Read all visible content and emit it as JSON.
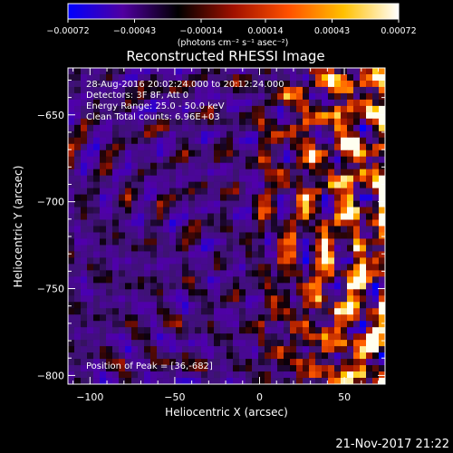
{
  "chart_data": {
    "type": "heatmap",
    "title": "Reconstructed RHESSI Image",
    "xlabel": "Heliocentric X (arcsec)",
    "ylabel": "Heliocentric Y (arcsec)",
    "xlim": [
      -113,
      74
    ],
    "ylim": [
      -805,
      -623
    ],
    "x_ticks": [
      -100,
      -50,
      0,
      50
    ],
    "y_ticks": [
      -650,
      -700,
      -750,
      -800
    ],
    "x_tick_labels": [
      "−100",
      "−50",
      "0",
      "50"
    ],
    "y_tick_labels": [
      "−650",
      "−700",
      "−750",
      "−800"
    ],
    "colorbar": {
      "range": [
        -0.00072,
        0.00072
      ],
      "ticks": [
        -0.00072,
        -0.00043,
        -0.00014,
        0.00014,
        0.00043,
        0.00072
      ],
      "tick_labels": [
        "−0.00072",
        "−0.00043",
        "−0.00014",
        "0.00014",
        "0.00043",
        "0.00072"
      ],
      "unit_label": "(photons cm⁻² s⁻¹ asec⁻²)",
      "colors": [
        "#0000ff",
        "#5000a0",
        "#000000",
        "#a01000",
        "#ff5000",
        "#ffc000",
        "#ffffff"
      ]
    },
    "annotations": [
      "28-Aug-2016 20:02:24.000 to 20:12:24.000",
      "Detectors: 3F 8F, Att 0",
      "Energy Range: 25.0 - 50.0 keV",
      "Clean     Total counts: 6.96E+03"
    ],
    "peak_label": "Position of Peak = [36,-682]",
    "peak_position": [
      36,
      -682
    ],
    "background_color": "#000000"
  },
  "footer": {
    "date": "21-Nov-2017 21:22"
  }
}
